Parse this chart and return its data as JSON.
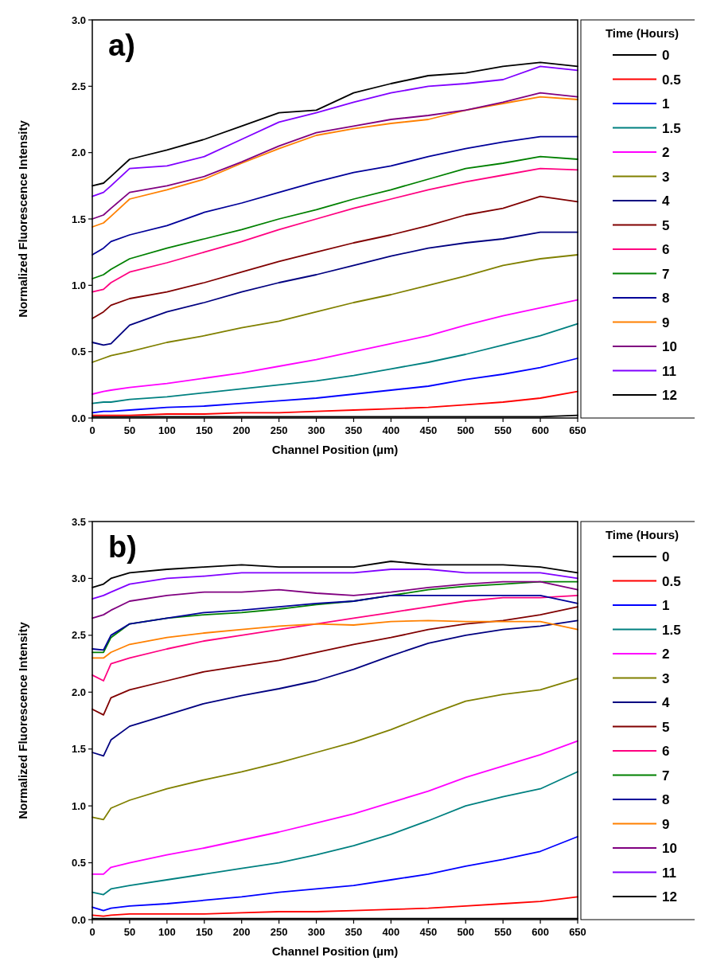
{
  "chart_data": [
    {
      "type": "line",
      "annotations": [
        "a)"
      ],
      "xlabel": "Channel Position (µm)",
      "ylabel": "Normalized Fluorescence Intensity",
      "legend_title": "Time (Hours)",
      "legend": "right",
      "xlim": [
        0,
        650
      ],
      "ylim": [
        0,
        3.0
      ],
      "xticks": [
        0,
        50,
        100,
        150,
        200,
        250,
        300,
        350,
        400,
        450,
        500,
        550,
        600,
        650
      ],
      "yticks": [
        {
          "value": 0,
          "label": "0.0"
        },
        0.5,
        {
          "value": 1,
          "label": "1.0"
        },
        1.5,
        {
          "value": 2,
          "label": "2.0"
        },
        2.5,
        {
          "value": 3,
          "label": "3.0"
        }
      ],
      "x": [
        0,
        15,
        25,
        50,
        100,
        150,
        200,
        250,
        300,
        350,
        400,
        450,
        500,
        550,
        600,
        650
      ],
      "series": [
        {
          "name": "0",
          "color": "#000000",
          "values": [
            0.01,
            0.01,
            0.01,
            0.01,
            0.01,
            0.01,
            0.01,
            0.01,
            0.01,
            0.01,
            0.01,
            0.01,
            0.01,
            0.01,
            0.01,
            0.02
          ]
        },
        {
          "name": "0.5",
          "color": "#ff0000",
          "values": [
            0.02,
            0.02,
            0.02,
            0.02,
            0.03,
            0.03,
            0.04,
            0.04,
            0.05,
            0.06,
            0.07,
            0.08,
            0.1,
            0.12,
            0.15,
            0.2
          ]
        },
        {
          "name": "1",
          "color": "#0000ff",
          "values": [
            0.04,
            0.05,
            0.05,
            0.06,
            0.08,
            0.09,
            0.11,
            0.13,
            0.15,
            0.18,
            0.21,
            0.24,
            0.29,
            0.33,
            0.38,
            0.45
          ]
        },
        {
          "name": "1.5",
          "color": "#008080",
          "values": [
            0.11,
            0.12,
            0.12,
            0.14,
            0.16,
            0.19,
            0.22,
            0.25,
            0.28,
            0.32,
            0.37,
            0.42,
            0.48,
            0.55,
            0.62,
            0.71
          ]
        },
        {
          "name": "2",
          "color": "#ff00ff",
          "values": [
            0.18,
            0.2,
            0.21,
            0.23,
            0.26,
            0.3,
            0.34,
            0.39,
            0.44,
            0.5,
            0.56,
            0.62,
            0.7,
            0.77,
            0.83,
            0.89
          ]
        },
        {
          "name": "3",
          "color": "#808000",
          "values": [
            0.42,
            0.45,
            0.47,
            0.5,
            0.57,
            0.62,
            0.68,
            0.73,
            0.8,
            0.87,
            0.93,
            1.0,
            1.07,
            1.15,
            1.2,
            1.23
          ]
        },
        {
          "name": "4",
          "color": "#000080",
          "values": [
            0.57,
            0.55,
            0.56,
            0.7,
            0.8,
            0.87,
            0.95,
            1.02,
            1.08,
            1.15,
            1.22,
            1.28,
            1.32,
            1.35,
            1.4,
            1.4
          ]
        },
        {
          "name": "5",
          "color": "#800000",
          "values": [
            0.75,
            0.8,
            0.85,
            0.9,
            0.95,
            1.02,
            1.1,
            1.18,
            1.25,
            1.32,
            1.38,
            1.45,
            1.53,
            1.58,
            1.67,
            1.63
          ]
        },
        {
          "name": "6",
          "color": "#ff0080",
          "values": [
            0.95,
            0.97,
            1.02,
            1.1,
            1.17,
            1.25,
            1.33,
            1.42,
            1.5,
            1.58,
            1.65,
            1.72,
            1.78,
            1.83,
            1.88,
            1.87
          ]
        },
        {
          "name": "7",
          "color": "#008000",
          "values": [
            1.05,
            1.08,
            1.12,
            1.2,
            1.28,
            1.35,
            1.42,
            1.5,
            1.57,
            1.65,
            1.72,
            1.8,
            1.88,
            1.92,
            1.97,
            1.95
          ]
        },
        {
          "name": "8",
          "color": "#000099",
          "values": [
            1.23,
            1.28,
            1.33,
            1.38,
            1.45,
            1.55,
            1.62,
            1.7,
            1.78,
            1.85,
            1.9,
            1.97,
            2.03,
            2.08,
            2.12,
            2.12
          ]
        },
        {
          "name": "9",
          "color": "#ff8000",
          "values": [
            1.44,
            1.47,
            1.52,
            1.65,
            1.72,
            1.8,
            1.92,
            2.03,
            2.13,
            2.18,
            2.22,
            2.25,
            2.32,
            2.37,
            2.42,
            2.4
          ]
        },
        {
          "name": "10",
          "color": "#800080",
          "values": [
            1.5,
            1.53,
            1.58,
            1.7,
            1.75,
            1.82,
            1.93,
            2.05,
            2.15,
            2.2,
            2.25,
            2.28,
            2.32,
            2.38,
            2.45,
            2.42
          ]
        },
        {
          "name": "11",
          "color": "#8000ff",
          "values": [
            1.67,
            1.7,
            1.75,
            1.88,
            1.9,
            1.97,
            2.1,
            2.23,
            2.3,
            2.38,
            2.45,
            2.5,
            2.52,
            2.55,
            2.65,
            2.62
          ]
        },
        {
          "name": "12",
          "color": "#000000",
          "values": [
            1.75,
            1.77,
            1.82,
            1.95,
            2.02,
            2.1,
            2.2,
            2.3,
            2.32,
            2.45,
            2.52,
            2.58,
            2.6,
            2.65,
            2.68,
            2.65
          ]
        }
      ]
    },
    {
      "type": "line",
      "annotations": [
        "b)"
      ],
      "xlabel": "Channel Position (µm)",
      "ylabel": "Normalized Fluorescence Intensity",
      "legend_title": "Time (Hours)",
      "legend": "right",
      "xlim": [
        0,
        650
      ],
      "ylim": [
        0,
        3.5
      ],
      "xticks": [
        0,
        50,
        100,
        150,
        200,
        250,
        300,
        350,
        400,
        450,
        500,
        550,
        600,
        650
      ],
      "yticks": [
        {
          "value": 0,
          "label": "0.0"
        },
        0.5,
        {
          "value": 1,
          "label": "1.0"
        },
        1.5,
        {
          "value": 2,
          "label": "2.0"
        },
        2.5,
        {
          "value": 3,
          "label": "3.0"
        },
        3.5
      ],
      "x": [
        0,
        15,
        25,
        50,
        100,
        150,
        200,
        250,
        300,
        350,
        400,
        450,
        500,
        550,
        600,
        650
      ],
      "series": [
        {
          "name": "0",
          "color": "#000000",
          "values": [
            0.01,
            0.01,
            0.01,
            0.01,
            0.01,
            0.01,
            0.01,
            0.01,
            0.01,
            0.01,
            0.01,
            0.01,
            0.01,
            0.01,
            0.01,
            0.01
          ]
        },
        {
          "name": "0.5",
          "color": "#ff0000",
          "values": [
            0.04,
            0.03,
            0.04,
            0.05,
            0.05,
            0.05,
            0.06,
            0.07,
            0.07,
            0.08,
            0.09,
            0.1,
            0.12,
            0.14,
            0.16,
            0.2
          ]
        },
        {
          "name": "1",
          "color": "#0000ff",
          "values": [
            0.11,
            0.08,
            0.1,
            0.12,
            0.14,
            0.17,
            0.2,
            0.24,
            0.27,
            0.3,
            0.35,
            0.4,
            0.47,
            0.53,
            0.6,
            0.73
          ]
        },
        {
          "name": "1.5",
          "color": "#008080",
          "values": [
            0.24,
            0.22,
            0.27,
            0.3,
            0.35,
            0.4,
            0.45,
            0.5,
            0.57,
            0.65,
            0.75,
            0.87,
            1.0,
            1.08,
            1.15,
            1.3
          ]
        },
        {
          "name": "2",
          "color": "#ff00ff",
          "values": [
            0.4,
            0.4,
            0.46,
            0.5,
            0.57,
            0.63,
            0.7,
            0.77,
            0.85,
            0.93,
            1.03,
            1.13,
            1.25,
            1.35,
            1.45,
            1.57
          ]
        },
        {
          "name": "3",
          "color": "#808000",
          "values": [
            0.9,
            0.88,
            0.98,
            1.05,
            1.15,
            1.23,
            1.3,
            1.38,
            1.47,
            1.56,
            1.67,
            1.8,
            1.92,
            1.98,
            2.02,
            2.12
          ]
        },
        {
          "name": "4",
          "color": "#000080",
          "values": [
            1.47,
            1.44,
            1.58,
            1.7,
            1.8,
            1.9,
            1.97,
            2.03,
            2.1,
            2.2,
            2.32,
            2.43,
            2.5,
            2.55,
            2.58,
            2.63
          ]
        },
        {
          "name": "5",
          "color": "#800000",
          "values": [
            1.85,
            1.8,
            1.95,
            2.02,
            2.1,
            2.18,
            2.23,
            2.28,
            2.35,
            2.42,
            2.48,
            2.55,
            2.6,
            2.63,
            2.68,
            2.75
          ]
        },
        {
          "name": "6",
          "color": "#ff0080",
          "values": [
            2.15,
            2.1,
            2.25,
            2.3,
            2.38,
            2.45,
            2.5,
            2.55,
            2.6,
            2.65,
            2.7,
            2.75,
            2.8,
            2.83,
            2.83,
            2.85
          ]
        },
        {
          "name": "7",
          "color": "#008000",
          "values": [
            2.35,
            2.35,
            2.48,
            2.6,
            2.65,
            2.68,
            2.7,
            2.73,
            2.77,
            2.8,
            2.85,
            2.9,
            2.93,
            2.95,
            2.97,
            2.97
          ]
        },
        {
          "name": "8",
          "color": "#000099",
          "values": [
            2.38,
            2.37,
            2.5,
            2.6,
            2.65,
            2.7,
            2.72,
            2.75,
            2.78,
            2.8,
            2.85,
            2.85,
            2.85,
            2.85,
            2.85,
            2.78
          ]
        },
        {
          "name": "9",
          "color": "#ff8000",
          "values": [
            2.3,
            2.3,
            2.35,
            2.42,
            2.48,
            2.52,
            2.55,
            2.58,
            2.6,
            2.59,
            2.62,
            2.63,
            2.62,
            2.62,
            2.62,
            2.55
          ]
        },
        {
          "name": "10",
          "color": "#800080",
          "values": [
            2.65,
            2.68,
            2.72,
            2.8,
            2.85,
            2.88,
            2.88,
            2.9,
            2.87,
            2.85,
            2.88,
            2.92,
            2.95,
            2.97,
            2.97,
            2.9
          ]
        },
        {
          "name": "11",
          "color": "#8000ff",
          "values": [
            2.82,
            2.85,
            2.88,
            2.95,
            3.0,
            3.02,
            3.05,
            3.05,
            3.05,
            3.05,
            3.08,
            3.08,
            3.05,
            3.05,
            3.05,
            3.0
          ]
        },
        {
          "name": "12",
          "color": "#000000",
          "values": [
            2.92,
            2.95,
            3.0,
            3.05,
            3.08,
            3.1,
            3.12,
            3.1,
            3.1,
            3.1,
            3.15,
            3.12,
            3.12,
            3.12,
            3.1,
            3.05
          ]
        }
      ]
    }
  ]
}
